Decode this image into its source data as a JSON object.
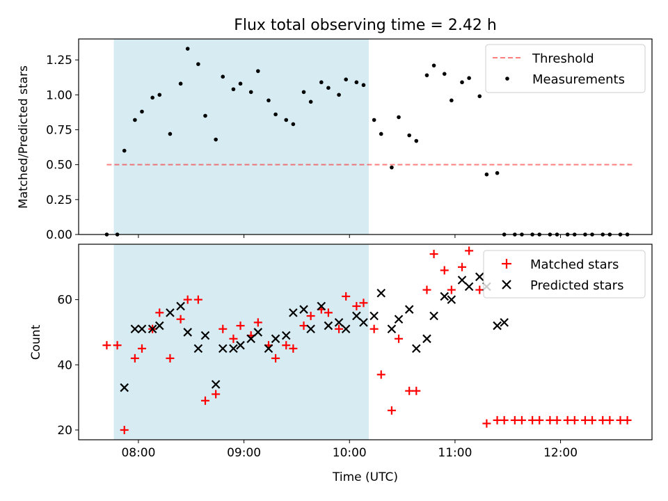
{
  "figure": {
    "title": "Flux total observing time = 2.42 h"
  },
  "colors": {
    "highlight": "#add8e6",
    "threshold": "#ff0000",
    "measurement": "#000000",
    "matched": "#ff0000",
    "predicted": "#000000"
  },
  "chart_data": [
    {
      "type": "scatter",
      "panel": "top",
      "ylabel": "Matched/Predicted stars",
      "xlabel": "",
      "xlim": [
        "07:26",
        "12:52"
      ],
      "ylim": [
        0,
        1.4
      ],
      "yticks": [
        0.0,
        0.25,
        0.5,
        0.75,
        1.0,
        1.25
      ],
      "ytick_labels": [
        "0.00",
        "0.25",
        "0.50",
        "0.75",
        "1.00",
        "1.25"
      ],
      "xticks": [
        "08:00",
        "09:00",
        "10:00",
        "11:00",
        "12:00"
      ],
      "show_xtick_labels": false,
      "highlight_span": [
        "07:46",
        "10:11"
      ],
      "legend": {
        "placement": "top-right",
        "entries": [
          "Threshold",
          "Measurements"
        ]
      },
      "threshold": {
        "name": "Threshold",
        "y": 0.5,
        "x_range": [
          "07:42",
          "12:42"
        ]
      },
      "series": [
        {
          "name": "Measurements",
          "marker": "dot",
          "x": [
            "07:42",
            "07:48",
            "07:52",
            "07:58",
            "08:02",
            "08:08",
            "08:12",
            "08:18",
            "08:24",
            "08:28",
            "08:34",
            "08:38",
            "08:44",
            "08:48",
            "08:54",
            "08:58",
            "09:04",
            "09:08",
            "09:14",
            "09:18",
            "09:24",
            "09:28",
            "09:34",
            "09:38",
            "09:44",
            "09:48",
            "09:54",
            "09:58",
            "10:04",
            "10:08",
            "10:14",
            "10:18",
            "10:24",
            "10:28",
            "10:34",
            "10:38",
            "10:44",
            "10:48",
            "10:54",
            "10:58",
            "11:04",
            "11:08",
            "11:14",
            "11:18",
            "11:24",
            "11:28",
            "11:34",
            "11:38",
            "11:44",
            "11:48",
            "11:54",
            "11:58",
            "12:04",
            "12:08",
            "12:14",
            "12:18",
            "12:24",
            "12:28",
            "12:34",
            "12:38"
          ],
          "y": [
            0.0,
            0.0,
            0.6,
            0.82,
            0.88,
            0.98,
            1.0,
            0.72,
            1.08,
            1.33,
            1.22,
            0.85,
            0.68,
            1.13,
            1.04,
            1.08,
            1.02,
            1.17,
            0.96,
            0.86,
            0.82,
            0.79,
            1.02,
            0.95,
            1.09,
            1.05,
            1.0,
            1.11,
            1.09,
            1.07,
            0.82,
            0.72,
            0.48,
            0.84,
            0.71,
            0.67,
            1.14,
            1.21,
            1.15,
            0.96,
            1.09,
            1.12,
            0.99,
            0.43,
            0.44,
            0.0,
            0.0,
            0.0,
            0.0,
            0.0,
            0.0,
            0.0,
            0.0,
            0.0,
            0.0,
            0.0,
            0.0,
            0.0,
            0.0,
            0.0
          ]
        }
      ]
    },
    {
      "type": "scatter",
      "panel": "bottom",
      "ylabel": "Count",
      "xlabel": "Time (UTC)",
      "xlim": [
        "07:26",
        "12:52"
      ],
      "ylim": [
        17,
        77
      ],
      "yticks": [
        20,
        40,
        60
      ],
      "ytick_labels": [
        "20",
        "40",
        "60"
      ],
      "xticks": [
        "08:00",
        "09:00",
        "10:00",
        "11:00",
        "12:00"
      ],
      "xtick_labels": [
        "08:00",
        "09:00",
        "10:00",
        "11:00",
        "12:00"
      ],
      "highlight_span": [
        "07:46",
        "10:11"
      ],
      "legend": {
        "placement": "top-right",
        "entries": [
          "Matched stars",
          "Predicted stars"
        ]
      },
      "series": [
        {
          "name": "Matched stars",
          "marker": "plus",
          "x": [
            "07:42",
            "07:48",
            "07:52",
            "07:58",
            "08:02",
            "08:08",
            "08:12",
            "08:18",
            "08:24",
            "08:28",
            "08:34",
            "08:38",
            "08:44",
            "08:48",
            "08:54",
            "08:58",
            "09:04",
            "09:08",
            "09:14",
            "09:18",
            "09:24",
            "09:28",
            "09:34",
            "09:38",
            "09:44",
            "09:48",
            "09:54",
            "09:58",
            "10:04",
            "10:08",
            "10:14",
            "10:18",
            "10:24",
            "10:28",
            "10:34",
            "10:38",
            "10:44",
            "10:48",
            "10:54",
            "10:58",
            "11:04",
            "11:08",
            "11:14",
            "11:18",
            "11:24",
            "11:28",
            "11:34",
            "11:38",
            "11:44",
            "11:48",
            "11:54",
            "11:58",
            "12:04",
            "12:08",
            "12:14",
            "12:18",
            "12:24",
            "12:28",
            "12:34",
            "12:38"
          ],
          "y": [
            46,
            46,
            20,
            42,
            45,
            51,
            56,
            42,
            54,
            60,
            60,
            29,
            31,
            51,
            48,
            52,
            49,
            53,
            46,
            42,
            46,
            45,
            52,
            55,
            57,
            56,
            51,
            61,
            58,
            59,
            51,
            37,
            26,
            48,
            32,
            32,
            63,
            74,
            69,
            63,
            70,
            75,
            63,
            22,
            23,
            23,
            23,
            23,
            23,
            23,
            23,
            23,
            23,
            23,
            23,
            23,
            23,
            23,
            23,
            23
          ]
        },
        {
          "name": "Predicted stars",
          "marker": "x",
          "x": [
            "07:52",
            "07:58",
            "08:02",
            "08:08",
            "08:12",
            "08:18",
            "08:24",
            "08:28",
            "08:34",
            "08:38",
            "08:44",
            "08:48",
            "08:54",
            "08:58",
            "09:04",
            "09:08",
            "09:14",
            "09:18",
            "09:24",
            "09:28",
            "09:34",
            "09:38",
            "09:44",
            "09:48",
            "09:54",
            "09:58",
            "10:04",
            "10:08",
            "10:14",
            "10:18",
            "10:24",
            "10:28",
            "10:34",
            "10:38",
            "10:44",
            "10:48",
            "10:54",
            "10:58",
            "11:04",
            "11:08",
            "11:14",
            "11:18",
            "11:24",
            "11:28"
          ],
          "y": [
            33,
            51,
            51,
            51,
            52,
            56,
            58,
            50,
            45,
            49,
            34,
            45,
            45,
            46,
            48,
            50,
            45,
            48,
            49,
            56,
            57,
            51,
            58,
            52,
            53,
            51,
            55,
            53,
            55,
            62,
            51,
            54,
            57,
            45,
            48,
            55,
            61,
            60,
            66,
            64,
            67,
            64,
            52,
            53
          ]
        }
      ]
    }
  ]
}
